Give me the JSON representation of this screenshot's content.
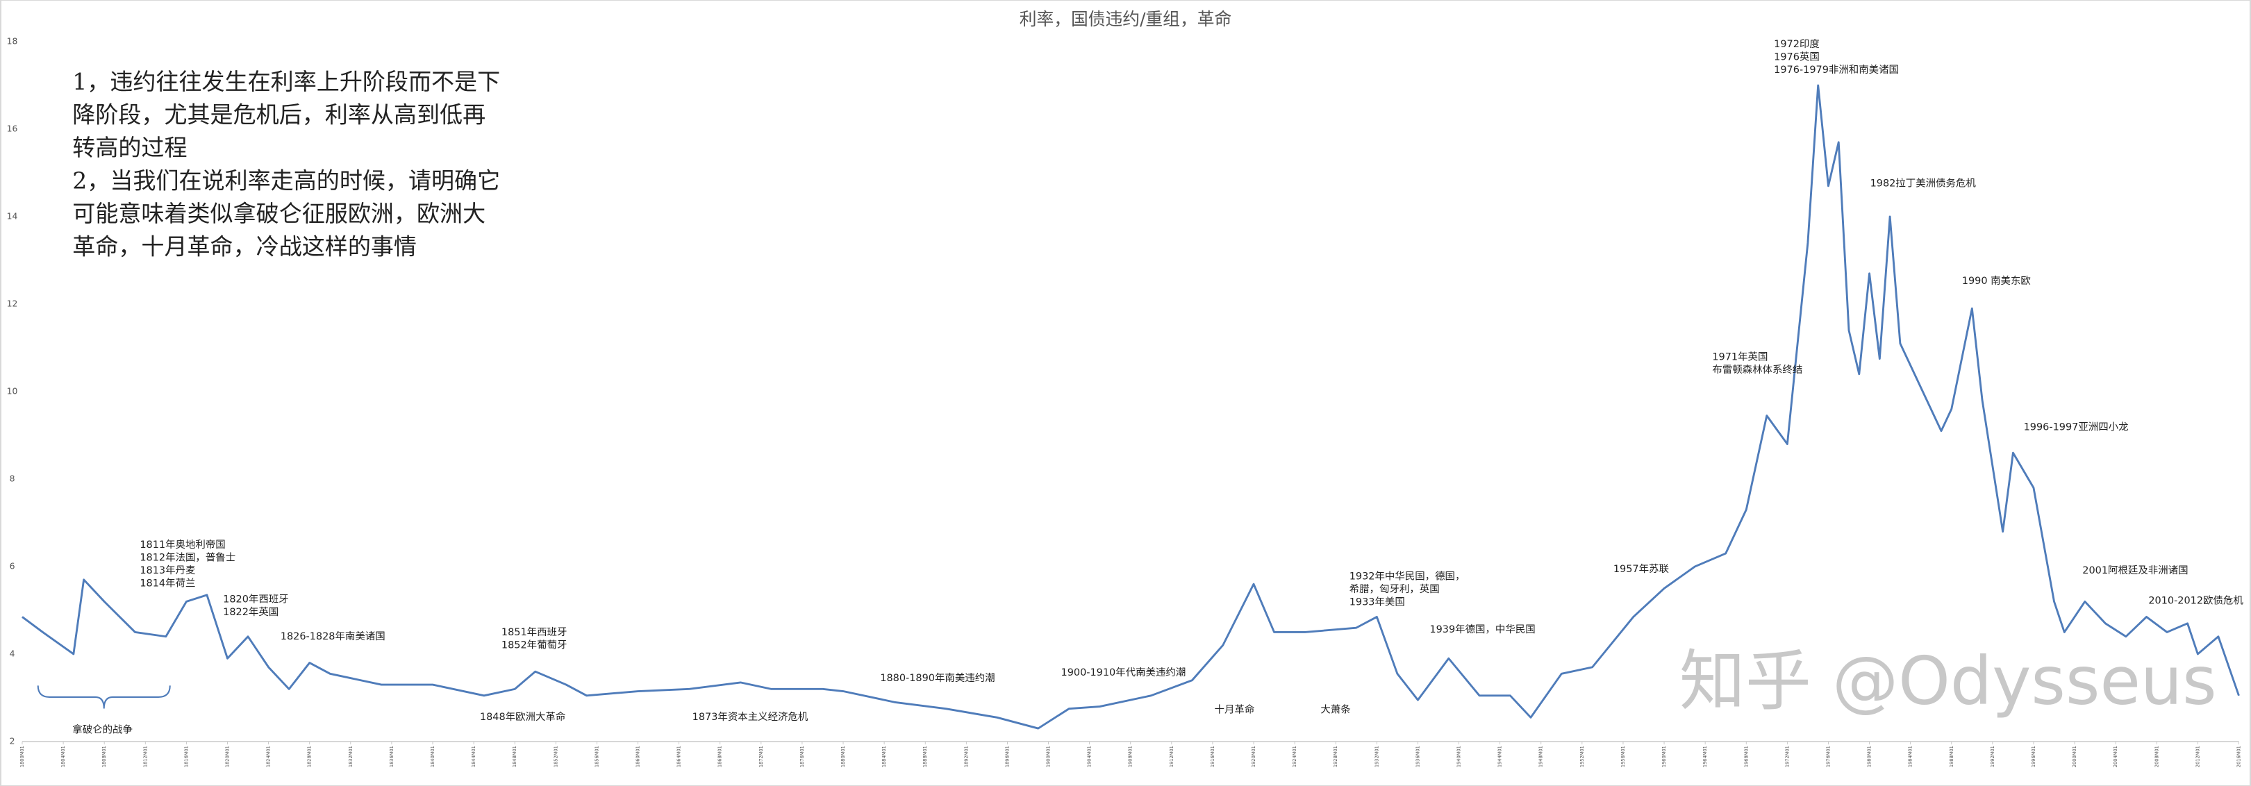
{
  "chart_data": {
    "type": "line",
    "title": "利率，国债违约/重组，革命",
    "notes": [
      "1，违约往往发生在利率上升阶段而不是下",
      "降阶段，尤其是危机后，利率从高到低再",
      "转高的过程",
      "2，当我们在说利率走高的时候，请明确它",
      "可能意味着类似拿破仑征服欧洲，欧洲大",
      "革命，十月革命，冷战这样的事情"
    ],
    "watermark": "知乎 @Odysseus",
    "xlim": [
      1800,
      2016
    ],
    "ylim": [
      2,
      18
    ],
    "yticks": [
      2,
      4,
      6,
      8,
      10,
      12,
      14,
      16,
      18
    ],
    "xticks": [
      {
        "value": 1800,
        "label": "1800M01"
      },
      {
        "value": 1804,
        "label": "1804M01"
      },
      {
        "value": 1808,
        "label": "1808M01"
      },
      {
        "value": 1812,
        "label": "1812M01"
      },
      {
        "value": 1816,
        "label": "1816M01"
      },
      {
        "value": 1820,
        "label": "1820M01"
      },
      {
        "value": 1824,
        "label": "1824M01"
      },
      {
        "value": 1828,
        "label": "1828M01"
      },
      {
        "value": 1832,
        "label": "1832M01"
      },
      {
        "value": 1836,
        "label": "1836M01"
      },
      {
        "value": 1840,
        "label": "1840M01"
      },
      {
        "value": 1844,
        "label": "1844M01"
      },
      {
        "value": 1848,
        "label": "1848M01"
      },
      {
        "value": 1852,
        "label": "1852M01"
      },
      {
        "value": 1856,
        "label": "1856M01"
      },
      {
        "value": 1860,
        "label": "1860M01"
      },
      {
        "value": 1864,
        "label": "1864M01"
      },
      {
        "value": 1868,
        "label": "1868M01"
      },
      {
        "value": 1872,
        "label": "1872M01"
      },
      {
        "value": 1876,
        "label": "1876M01"
      },
      {
        "value": 1880,
        "label": "1880M01"
      },
      {
        "value": 1884,
        "label": "1884M01"
      },
      {
        "value": 1888,
        "label": "1888M01"
      },
      {
        "value": 1892,
        "label": "1892M01"
      },
      {
        "value": 1896,
        "label": "1896M01"
      },
      {
        "value": 1900,
        "label": "1900M01"
      },
      {
        "value": 1904,
        "label": "1904M01"
      },
      {
        "value": 1908,
        "label": "1908M01"
      },
      {
        "value": 1912,
        "label": "1912M01"
      },
      {
        "value": 1916,
        "label": "1916M01"
      },
      {
        "value": 1920,
        "label": "1920M01"
      },
      {
        "value": 1924,
        "label": "1924M01"
      },
      {
        "value": 1928,
        "label": "1928M01"
      },
      {
        "value": 1932,
        "label": "1932M01"
      },
      {
        "value": 1936,
        "label": "1936M01"
      },
      {
        "value": 1940,
        "label": "1940M01"
      },
      {
        "value": 1944,
        "label": "1944M01"
      },
      {
        "value": 1948,
        "label": "1948M01"
      },
      {
        "value": 1952,
        "label": "1952M01"
      },
      {
        "value": 1956,
        "label": "1956M01"
      },
      {
        "value": 1960,
        "label": "1960M01"
      },
      {
        "value": 1964,
        "label": "1964M01"
      },
      {
        "value": 1968,
        "label": "1968M01"
      },
      {
        "value": 1972,
        "label": "1972M01"
      },
      {
        "value": 1976,
        "label": "1976M01"
      },
      {
        "value": 1980,
        "label": "1980M01"
      },
      {
        "value": 1984,
        "label": "1984M01"
      },
      {
        "value": 1988,
        "label": "1988M01"
      },
      {
        "value": 1992,
        "label": "1992M01"
      },
      {
        "value": 1996,
        "label": "1996M01"
      },
      {
        "value": 2000,
        "label": "2000M01"
      },
      {
        "value": 2004,
        "label": "2004M01"
      },
      {
        "value": 2008,
        "label": "2008M01"
      },
      {
        "value": 2012,
        "label": "2012M01"
      },
      {
        "value": 2016,
        "label": "2016M01"
      }
    ],
    "series": [
      {
        "color": "#4f7cba",
        "x": [
          1800,
          1802,
          1805,
          1806,
          1808,
          1811,
          1814,
          1816,
          1818,
          1820,
          1822,
          1824,
          1826,
          1828,
          1830,
          1835,
          1840,
          1845,
          1848,
          1850,
          1853,
          1855,
          1860,
          1865,
          1870,
          1873,
          1878,
          1880,
          1885,
          1890,
          1895,
          1899,
          1902,
          1905,
          1910,
          1914,
          1917,
          1920,
          1922,
          1925,
          1930,
          1932,
          1934,
          1936,
          1939,
          1942,
          1945,
          1947,
          1950,
          1953,
          1957,
          1960,
          1963,
          1966,
          1968,
          1970,
          1972,
          1974,
          1975,
          1976,
          1977,
          1978,
          1979,
          1980,
          1981,
          1982,
          1983,
          1985,
          1987,
          1988,
          1990,
          1991,
          1993,
          1994,
          1996,
          1998,
          1999,
          2001,
          2003,
          2005,
          2007,
          2009,
          2011,
          2012,
          2014,
          2016
        ],
        "values": [
          4.85,
          4.5,
          4.0,
          5.7,
          5.2,
          4.5,
          4.4,
          5.2,
          5.35,
          3.9,
          4.4,
          3.7,
          3.2,
          3.8,
          3.55,
          3.3,
          3.3,
          3.05,
          3.2,
          3.6,
          3.3,
          3.05,
          3.15,
          3.2,
          3.35,
          3.2,
          3.2,
          3.15,
          2.9,
          2.75,
          2.55,
          2.3,
          2.75,
          2.8,
          3.05,
          3.4,
          4.2,
          5.6,
          4.5,
          4.5,
          4.6,
          4.85,
          3.55,
          2.95,
          3.9,
          3.05,
          3.05,
          2.55,
          3.55,
          3.7,
          4.85,
          5.5,
          6.0,
          6.3,
          7.3,
          9.45,
          8.8,
          13.4,
          17.0,
          14.7,
          15.7,
          11.4,
          10.4,
          12.7,
          10.75,
          14.0,
          11.1,
          10.1,
          9.1,
          9.6,
          11.9,
          9.8,
          6.8,
          8.6,
          7.8,
          5.2,
          4.5,
          5.2,
          4.7,
          4.4,
          4.85,
          4.5,
          4.7,
          4.0,
          4.4,
          3.05
        ]
      }
    ],
    "annotations": [
      [
        "1811年奥地利帝国",
        "1812年法国，普鲁士",
        "1813年丹麦",
        "1814年荷兰"
      ],
      [
        "1820年西班牙",
        "1822年英国"
      ],
      [
        "1826-1828年南美诸国"
      ],
      [
        "1851年西班牙",
        "1852年葡萄牙"
      ],
      [
        "1848年欧洲大革命"
      ],
      [
        "1873年资本主义经济危机"
      ],
      [
        "1880-1890年南美违约潮"
      ],
      [
        "1900-1910年代南美违约潮"
      ],
      [
        "十月革命"
      ],
      [
        "大萧条"
      ],
      [
        "1932年中华民国，德国，",
        "希腊，匈牙利，英国",
        "1933年美国"
      ],
      [
        "1939年德国，中华民国"
      ],
      [
        "1957年苏联"
      ],
      [
        "1971年英国",
        "布雷顿森林体系终结"
      ],
      [
        "1972印度",
        "1976英国",
        "1976-1979非洲和南美诸国"
      ],
      [
        "1982拉丁美洲债务危机"
      ],
      [
        "1990 南美东欧"
      ],
      [
        "1996-1997亚洲四小龙"
      ],
      [
        "2001阿根廷及非洲诸国"
      ],
      [
        "2010-2012欧债危机"
      ],
      [
        "拿破仑的战争"
      ]
    ]
  }
}
